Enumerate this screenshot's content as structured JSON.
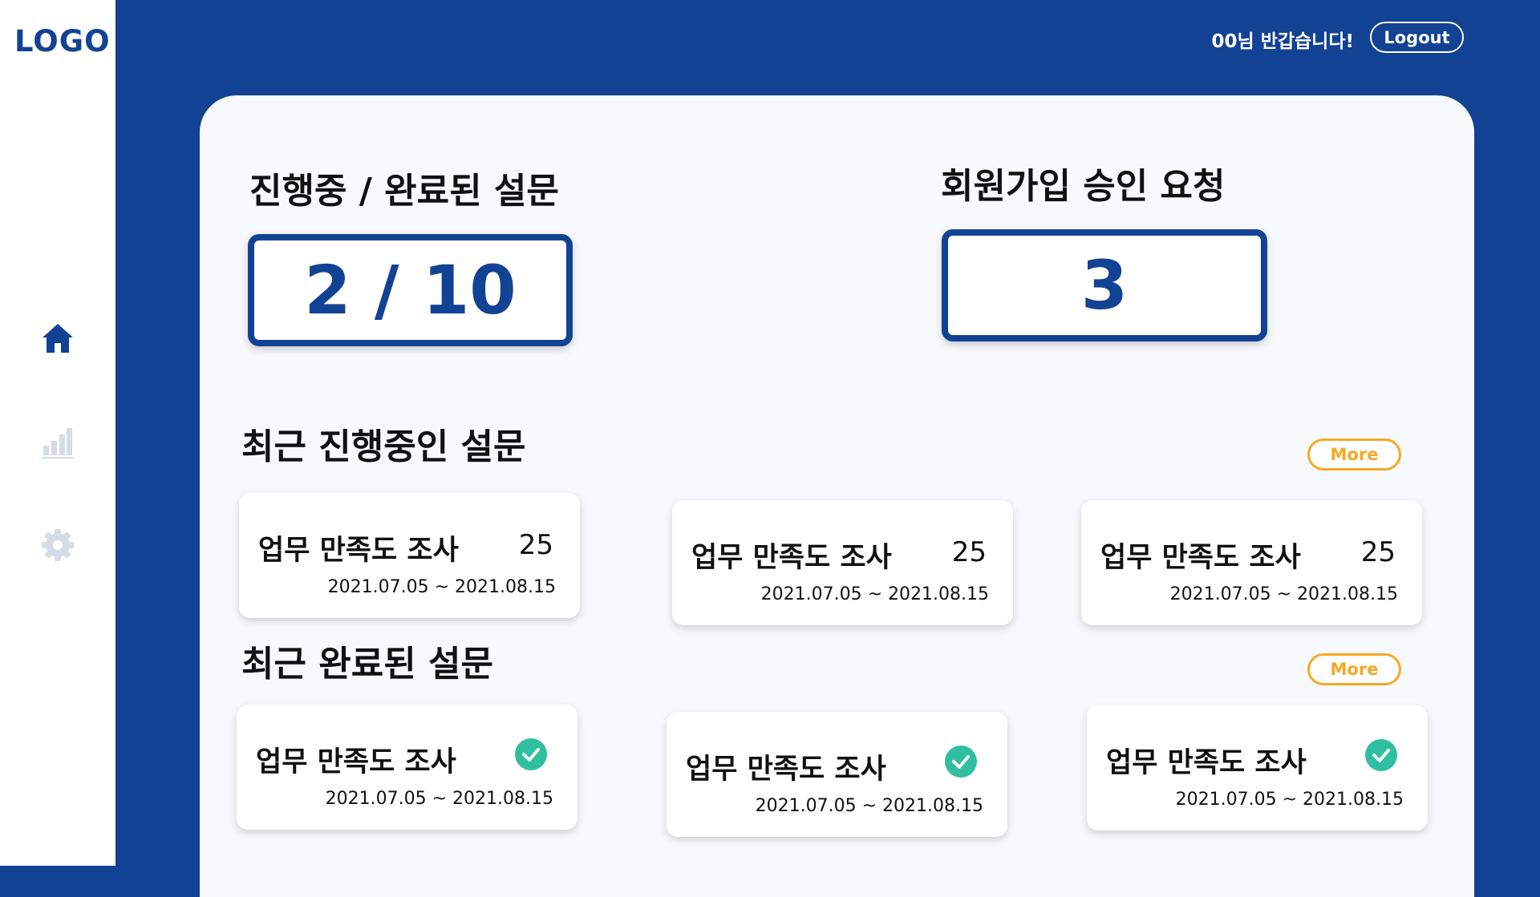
{
  "sidebar": {
    "logo": "LOGO",
    "nav": [
      {
        "icon": "home-icon",
        "active": true
      },
      {
        "icon": "bar-chart-icon",
        "active": false
      },
      {
        "icon": "gear-icon",
        "active": false
      }
    ]
  },
  "header": {
    "greeting": "00님 반갑습니다!",
    "logout_label": "Logout"
  },
  "summary": {
    "progress_title": "진행중 / 완료된 설문",
    "progress_value": "2 / 10",
    "signup_title": "회원가입 승인 요청",
    "signup_value": "3"
  },
  "recent_ongoing": {
    "title": "최근 진행중인 설문",
    "more_label": "More",
    "cards": [
      {
        "title": "업무 만족도 조사",
        "count": "25",
        "date": "2021.07.05 ~ 2021.08.15"
      },
      {
        "title": "업무 만족도 조사",
        "count": "25",
        "date": "2021.07.05 ~ 2021.08.15"
      },
      {
        "title": "업무 만족도 조사",
        "count": "25",
        "date": "2021.07.05 ~ 2021.08.15"
      }
    ]
  },
  "recent_done": {
    "title": "최근 완료된 설문",
    "more_label": "More",
    "cards": [
      {
        "title": "업무 만족도 조사",
        "date": "2021.07.05 ~ 2021.08.15",
        "status_icon": "check-circle-icon"
      },
      {
        "title": "업무 만족도 조사",
        "date": "2021.07.05 ~ 2021.08.15",
        "status_icon": "check-circle-icon"
      },
      {
        "title": "업무 만족도 조사",
        "date": "2021.07.05 ~ 2021.08.15",
        "status_icon": "check-circle-icon"
      }
    ]
  },
  "colors": {
    "brand": "#124294",
    "accent": "#f7a823",
    "success": "#2fbfa0",
    "inactive_icon": "#d6dbe6"
  }
}
